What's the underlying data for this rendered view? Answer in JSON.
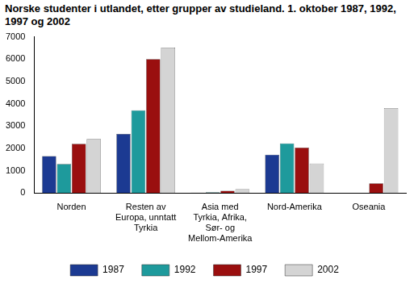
{
  "chart_data": {
    "type": "bar",
    "title": "Norske studenter i utlandet, etter grupper av studieland. 1. oktober 1987, 1992, 1997 og 2002",
    "categories": [
      "Norden",
      "Resten av Europa, unntatt Tyrkia",
      "Asia med Tyrkia, Afrika, Sør- og Mellom-Amerika",
      "Nord-Amerika",
      "Oseania"
    ],
    "series": [
      {
        "name": "1987",
        "color": "#1c3a92",
        "values": [
          1650,
          2650,
          20,
          1720,
          null
        ]
      },
      {
        "name": "1992",
        "color": "#1e9a9c",
        "values": [
          1300,
          3700,
          30,
          2220,
          null
        ]
      },
      {
        "name": "1997",
        "color": "#9a0f0f",
        "values": [
          2200,
          6000,
          100,
          2030,
          430
        ]
      },
      {
        "name": "2002",
        "color": "#d4d4d4",
        "values": [
          2420,
          6520,
          170,
          1320,
          3800
        ]
      }
    ],
    "ylim": [
      0,
      7000
    ],
    "yticks": [
      0,
      1000,
      2000,
      3000,
      4000,
      5000,
      6000,
      7000
    ],
    "grid": false,
    "legend": "bottom"
  }
}
